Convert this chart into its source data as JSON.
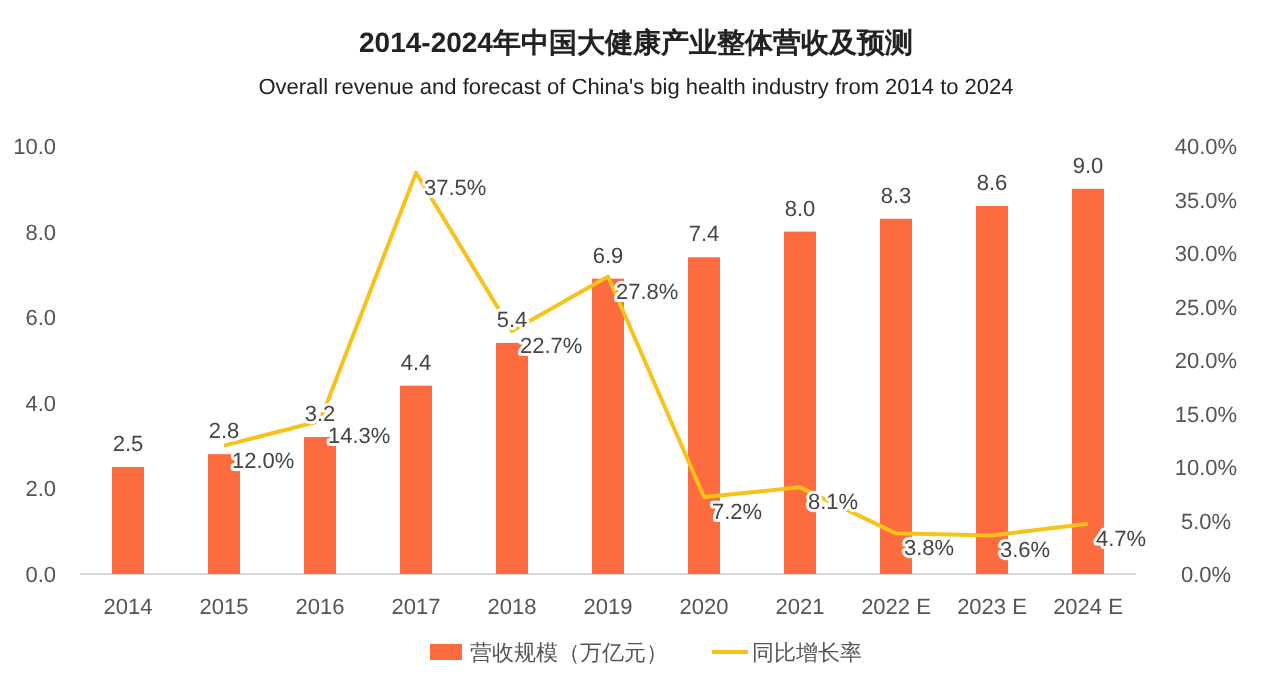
{
  "chart_data": {
    "type": "bar",
    "title": "2014-2024年中国大健康产业整体营收及预测",
    "subtitle": "Overall revenue and forecast of China's big health industry from 2014 to 2024",
    "categories": [
      "2014",
      "2015",
      "2016",
      "2017",
      "2018",
      "2019",
      "2020",
      "2021",
      "2022 E",
      "2023 E",
      "2024 E"
    ],
    "series": [
      {
        "name": "营收规模（万亿元）",
        "color": "#fd6b3f",
        "values": [
          2.5,
          2.8,
          3.2,
          4.4,
          5.4,
          6.9,
          7.4,
          8.0,
          8.3,
          8.6,
          9.0
        ],
        "value_labels": [
          "2.5",
          "2.8",
          "3.2",
          "4.4",
          "5.4",
          "6.9",
          "7.4",
          "8.0",
          "8.3",
          "8.6",
          "9.0"
        ]
      },
      {
        "name": "同比增长率",
        "type": "line",
        "axis": "y2",
        "color": "#f7c21b",
        "values": [
          null,
          12.0,
          14.3,
          37.5,
          22.7,
          27.8,
          7.2,
          8.1,
          3.8,
          3.6,
          4.7
        ],
        "value_labels": [
          null,
          "12.0%",
          "14.3%",
          "37.5%",
          "22.7%",
          "27.8%",
          "7.2%",
          "8.1%",
          "3.8%",
          "3.6%",
          "4.7%"
        ]
      }
    ],
    "ylim": [
      0,
      10
    ],
    "yticks": [
      {
        "value": 0,
        "label": "0.0"
      },
      {
        "value": 2,
        "label": "2.0"
      },
      {
        "value": 4,
        "label": "4.0"
      },
      {
        "value": 6,
        "label": "6.0"
      },
      {
        "value": 8,
        "label": "8.0"
      },
      {
        "value": 10,
        "label": "10.0"
      }
    ],
    "y2lim": [
      0,
      40
    ],
    "y2ticks": [
      {
        "value": 0,
        "label": "0.0%"
      },
      {
        "value": 5,
        "label": "5.0%"
      },
      {
        "value": 10,
        "label": "10.0%"
      },
      {
        "value": 15,
        "label": "15.0%"
      },
      {
        "value": 20,
        "label": "20.0%"
      },
      {
        "value": 25,
        "label": "25.0%"
      },
      {
        "value": 30,
        "label": "30.0%"
      },
      {
        "value": 35,
        "label": "35.0%"
      },
      {
        "value": 40,
        "label": "40.0%"
      }
    ],
    "legend": "bottom",
    "marker": "none",
    "line_style": "solid"
  }
}
